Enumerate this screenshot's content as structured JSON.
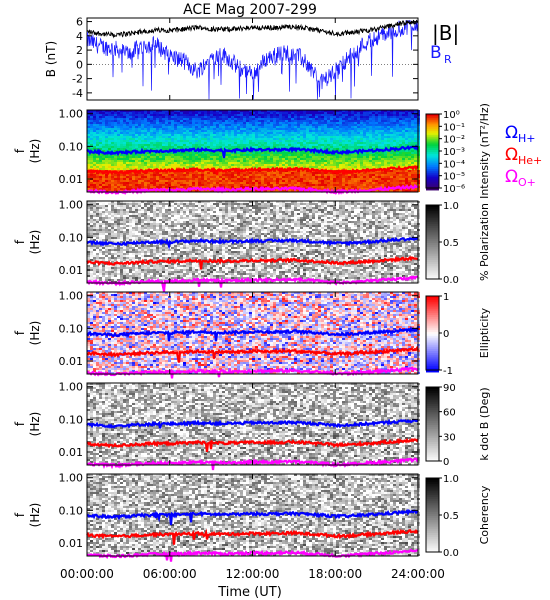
{
  "title": "ACE Mag 2007-299",
  "xlabel": "Time (UT)",
  "colors": {
    "total": "#000000",
    "radial": "#1a1aff",
    "H": "#0000ff",
    "He": "#ff0000",
    "O": "#ff00ff"
  },
  "legend": {
    "B": "|B|",
    "BR": "B",
    "BR_sub": "R"
  },
  "cyclotron_legend": [
    {
      "symbol": "Ω",
      "sub": "H+",
      "color": "#0000ff"
    },
    {
      "symbol": "Ω",
      "sub": "He+",
      "color": "#ff0000"
    },
    {
      "symbol": "Ω",
      "sub": "O+",
      "color": "#ff00ff"
    }
  ],
  "chart_data": [
    {
      "type": "line",
      "ylabel": "B (nT)",
      "ylim": [
        -5,
        6.5
      ],
      "yticks": [
        -4,
        -2,
        0,
        2,
        4,
        6
      ],
      "xticks": [
        "00:00:00",
        "06:00:00",
        "12:00:00",
        "18:00:00",
        "24:00:00"
      ],
      "xlim_hours": [
        0,
        24
      ],
      "series": [
        {
          "name": "|B|",
          "x": [
            0,
            1,
            2,
            3,
            4,
            5,
            6,
            7,
            8,
            9,
            10,
            11,
            12,
            13,
            14,
            15,
            16,
            17,
            18,
            19,
            20,
            21,
            22,
            23,
            24
          ],
          "values": [
            4.6,
            4.3,
            4.1,
            4.3,
            4.6,
            4.8,
            4.8,
            4.9,
            5.2,
            5.0,
            4.9,
            5.0,
            5.2,
            5.1,
            5.2,
            5.3,
            5.0,
            4.7,
            4.3,
            4.4,
            4.7,
            5.0,
            5.4,
            5.8,
            6.0
          ]
        },
        {
          "name": "B_R",
          "x": [
            0,
            1,
            2,
            3,
            4,
            5,
            6,
            7,
            8,
            9,
            10,
            11,
            12,
            13,
            14,
            15,
            16,
            17,
            18,
            19,
            20,
            21,
            22,
            23,
            24
          ],
          "values": [
            3.4,
            2.5,
            2.2,
            1.5,
            2.6,
            2.8,
            1.2,
            0.5,
            -1.0,
            1.0,
            1.3,
            -0.5,
            -1.5,
            0.8,
            1.5,
            1.8,
            0.0,
            -2.5,
            -1.0,
            1.0,
            2.8,
            3.8,
            4.5,
            5.2,
            5.8
          ]
        }
      ]
    },
    {
      "type": "heatmap",
      "ylabel": "f (Hz)",
      "yticks": [
        "1.00",
        "0.10",
        "0.01"
      ],
      "colorbar": {
        "label": "Intensity (nT²/Hz)",
        "ticks": [
          "10⁰",
          "10⁻¹",
          "10⁻²",
          "10⁻³",
          "10⁻⁴",
          "10⁻⁵",
          "10⁻⁶"
        ],
        "scale": "rainbow"
      }
    },
    {
      "type": "heatmap",
      "ylabel": "f (Hz)",
      "yticks": [
        "1.00",
        "0.10",
        "0.01"
      ],
      "colorbar": {
        "label": "% Polarization",
        "ticks": [
          "1.0",
          "0.5",
          "0.0"
        ],
        "scale": "gray"
      }
    },
    {
      "type": "heatmap",
      "ylabel": "f (Hz)",
      "yticks": [
        "1.00",
        "0.10",
        "0.01"
      ],
      "colorbar": {
        "label": "Ellipticity",
        "ticks": [
          "1",
          "0",
          "-1"
        ],
        "scale": "bwr"
      }
    },
    {
      "type": "heatmap",
      "ylabel": "f (Hz)",
      "yticks": [
        "1.00",
        "0.10",
        "0.01"
      ],
      "colorbar": {
        "label": "k dot B (Deg)",
        "ticks": [
          "90",
          "60",
          "30",
          "0"
        ],
        "scale": "gray"
      }
    },
    {
      "type": "heatmap",
      "ylabel": "f (Hz)",
      "yticks": [
        "1.00",
        "0.10",
        "0.01"
      ],
      "colorbar": {
        "label": "Coherency",
        "ticks": [
          "1.0",
          "0.5",
          "0.0"
        ],
        "scale": "gray"
      }
    },
    {
      "type": "line",
      "name": "cyclotron_frequencies",
      "x_hours": [
        0,
        1,
        2,
        3,
        4,
        5,
        6,
        7,
        8,
        9,
        10,
        11,
        12,
        13,
        14,
        15,
        16,
        17,
        18,
        19,
        20,
        21,
        22,
        23,
        24
      ],
      "series": [
        {
          "name": "Ω H+",
          "values": [
            0.07,
            0.066,
            0.063,
            0.066,
            0.07,
            0.073,
            0.073,
            0.075,
            0.079,
            0.076,
            0.075,
            0.076,
            0.079,
            0.078,
            0.079,
            0.081,
            0.076,
            0.072,
            0.066,
            0.067,
            0.072,
            0.076,
            0.082,
            0.088,
            0.092
          ]
        },
        {
          "name": "Ω He+",
          "values": [
            0.0175,
            0.0165,
            0.0158,
            0.0165,
            0.0175,
            0.0183,
            0.0183,
            0.0188,
            0.0198,
            0.019,
            0.0188,
            0.019,
            0.0198,
            0.0195,
            0.0198,
            0.0203,
            0.019,
            0.018,
            0.0165,
            0.0168,
            0.018,
            0.019,
            0.0205,
            0.022,
            0.023
          ]
        },
        {
          "name": "Ω O+",
          "values": [
            0.0044,
            0.0041,
            0.0039,
            0.0041,
            0.0044,
            0.0046,
            0.0046,
            0.0047,
            0.005,
            0.0048,
            0.0047,
            0.0048,
            0.005,
            0.0049,
            0.005,
            0.0051,
            0.0048,
            0.0045,
            0.0041,
            0.0042,
            0.0045,
            0.0048,
            0.0051,
            0.0055,
            0.0058
          ]
        }
      ]
    }
  ]
}
